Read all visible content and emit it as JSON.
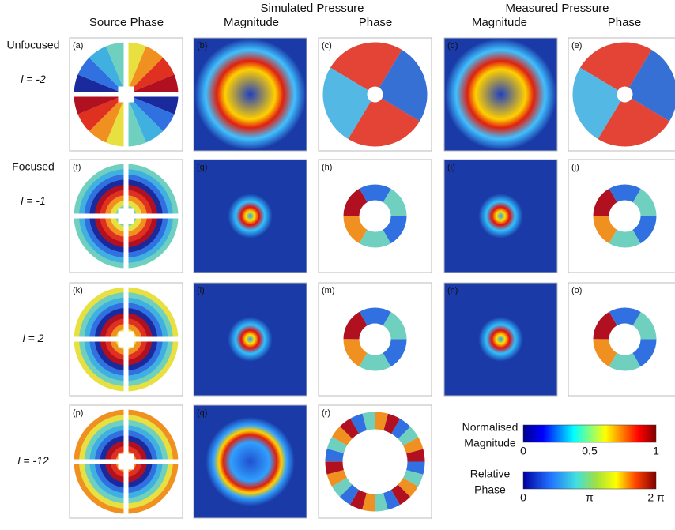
{
  "column_groups": [
    "Simulated Pressure",
    "Measured Pressure"
  ],
  "columns": [
    "Source Phase",
    "Magnitude",
    "Phase",
    "Magnitude",
    "Phase"
  ],
  "rows": [
    {
      "group": "Unfocused",
      "label": "l = -2"
    },
    {
      "group": "Focused",
      "label": "l = -1"
    },
    {
      "label": "l = 2"
    },
    {
      "label": "l = -12"
    }
  ],
  "panels": [
    [
      "(a)",
      "(b)",
      "(c)",
      "(d)",
      "(e)"
    ],
    [
      "(f)",
      "(g)",
      "(h)",
      "(i)",
      "(j)"
    ],
    [
      "(k)",
      "(l)",
      "(m)",
      "(n)",
      "(o)"
    ],
    [
      "(p)",
      "(q)",
      "(r)"
    ]
  ],
  "colorbars": [
    {
      "title": [
        "Normalised",
        "Magnitude"
      ],
      "ticks": [
        "0",
        "0.5",
        "1"
      ]
    },
    {
      "title": [
        "Relative",
        "Phase"
      ],
      "ticks": [
        "0",
        "π",
        "2 π"
      ]
    }
  ]
}
